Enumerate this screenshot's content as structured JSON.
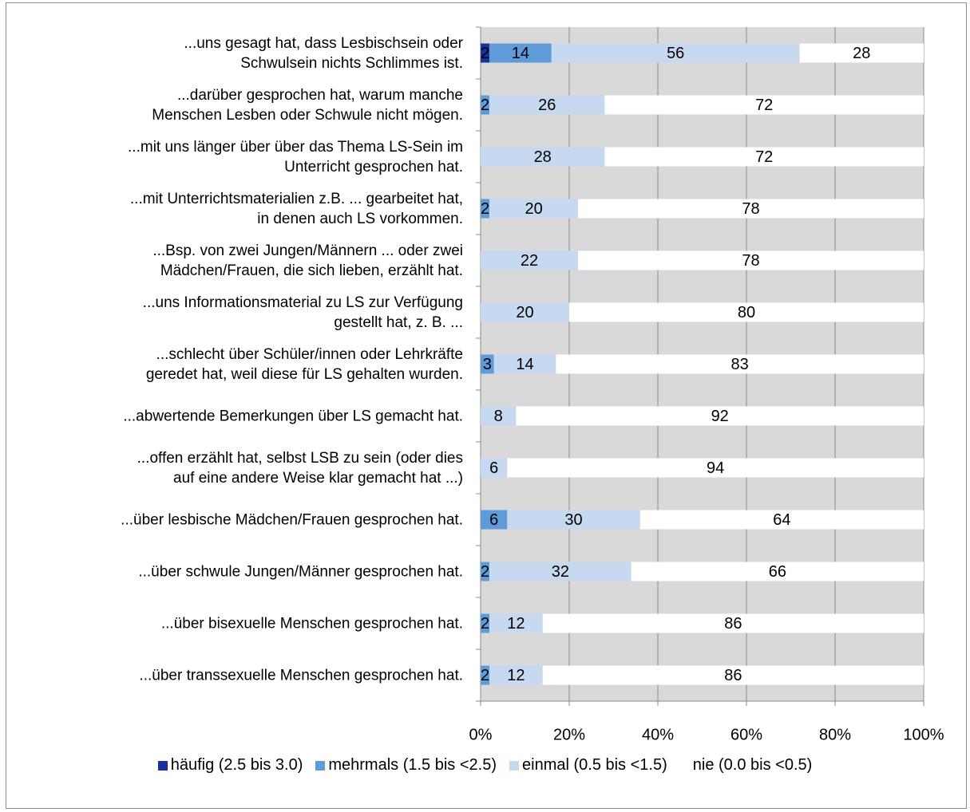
{
  "chart_data": {
    "type": "stacked_barh",
    "categories": [
      "...uns gesagt hat, dass Lesbischsein oder\nSchwulsein nichts Schlimmes ist.",
      "...darüber gesprochen hat, warum manche\nMenschen Lesben oder Schwule nicht mögen.",
      "...mit uns länger über über das Thema LS-Sein im\nUnterricht gesprochen hat.",
      "...mit Unterrichtsmaterialien z.B. ... gearbeitet hat,\nin denen auch LS vorkommen.",
      "...Bsp. von zwei Jungen/Männern ... oder zwei\nMädchen/Frauen, die sich lieben, erzählt hat.",
      "...uns Informationsmaterial zu LS zur Verfügung\ngestellt hat, z. B. ...",
      "...schlecht über Schüler/innen oder Lehrkräfte\ngeredet hat, weil diese für LS gehalten wurden.",
      "...abwertende Bemerkungen über LS gemacht hat.",
      "...offen erzählt hat, selbst LSB zu sein (oder dies\nauf eine andere Weise klar gemacht hat ...)",
      "...über lesbische Mädchen/Frauen gesprochen hat.",
      "...über schwule Jungen/Männer gesprochen hat.",
      "...über bisexuelle Menschen gesprochen hat.",
      "...über transsexuelle Menschen gesprochen hat."
    ],
    "series": [
      {
        "name": "häufig (2.5 bis 3.0)",
        "color": "#17339b",
        "values": [
          2,
          null,
          null,
          null,
          null,
          null,
          null,
          null,
          null,
          null,
          null,
          null,
          null
        ]
      },
      {
        "name": "mehrmals (1.5 bis <2.5)",
        "color": "#5f9bd8",
        "values": [
          14,
          2,
          null,
          2,
          null,
          null,
          3,
          null,
          null,
          6,
          2,
          2,
          2
        ]
      },
      {
        "name": "einmal (0.5 bis <1.5)",
        "color": "#c7d9f1",
        "values": [
          56,
          26,
          28,
          20,
          22,
          20,
          14,
          8,
          6,
          30,
          32,
          12,
          12
        ]
      },
      {
        "name": "nie (0.0 bis <0.5)",
        "color": "#ffffff",
        "values": [
          28,
          72,
          72,
          78,
          78,
          80,
          83,
          92,
          94,
          64,
          66,
          86,
          86
        ]
      }
    ],
    "xlim": [
      0,
      100
    ],
    "xticks": [
      {
        "value": 0,
        "label": "0%"
      },
      {
        "value": 20,
        "label": "20%"
      },
      {
        "value": 40,
        "label": "40%"
      },
      {
        "value": 60,
        "label": "60%"
      },
      {
        "value": 80,
        "label": "80%"
      },
      {
        "value": 100,
        "label": "100%"
      }
    ],
    "grid": true,
    "legend": "bottom"
  }
}
